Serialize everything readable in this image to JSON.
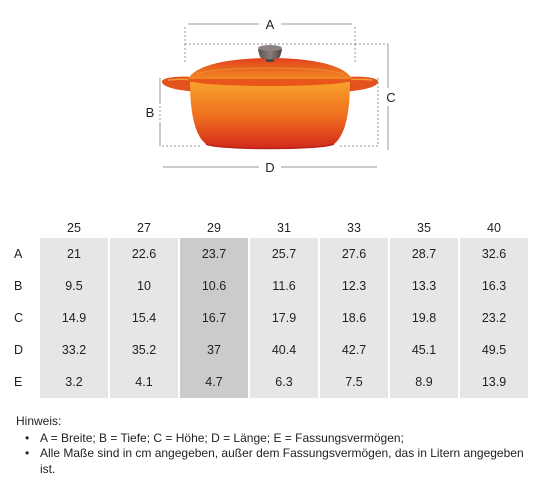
{
  "diagram": {
    "label_a": "A",
    "label_b": "B",
    "label_c": "C",
    "label_d": "D",
    "colors": {
      "pot_top": "#f59a1e",
      "pot_bottom": "#d8321a",
      "knob": "#6e6260",
      "guide": "#9a9a9a"
    }
  },
  "table": {
    "sizes": [
      "25",
      "27",
      "29",
      "31",
      "33",
      "35",
      "40"
    ],
    "highlight_size": "29",
    "highlight_color": "#c9cccb",
    "cell_color": "#e6e6e6",
    "rows": [
      {
        "label": "A",
        "values": [
          "21",
          "22.6",
          "23.7",
          "25.7",
          "27.6",
          "28.7",
          "32.6"
        ]
      },
      {
        "label": "B",
        "values": [
          "9.5",
          "10",
          "10.6",
          "11.6",
          "12.3",
          "13.3",
          "16.3"
        ]
      },
      {
        "label": "C",
        "values": [
          "14.9",
          "15.4",
          "16.7",
          "17.9",
          "18.6",
          "19.8",
          "23.2"
        ]
      },
      {
        "label": "D",
        "values": [
          "33.2",
          "35.2",
          "37",
          "40.4",
          "42.7",
          "45.1",
          "49.5"
        ]
      },
      {
        "label": "E",
        "values": [
          "3.2",
          "4.1",
          "4.7",
          "6.3",
          "7.5",
          "8.9",
          "13.9"
        ]
      }
    ]
  },
  "note": {
    "heading": "Hinweis:",
    "items": [
      "A = Breite; B = Tiefe; C = Höhe; D = Länge; E = Fassungsvermögen;",
      "Alle Maße sind in cm angegeben, außer dem Fassungsvermögen, das in Litern angegeben ist."
    ]
  }
}
